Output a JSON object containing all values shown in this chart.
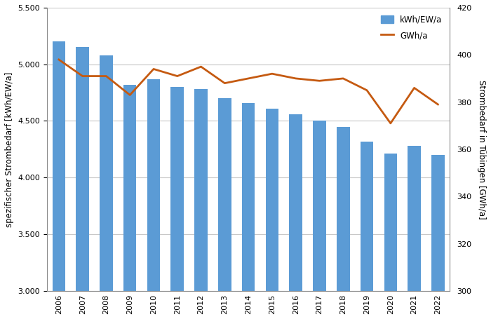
{
  "years": [
    2006,
    2007,
    2008,
    2009,
    2010,
    2011,
    2012,
    2013,
    2014,
    2015,
    2016,
    2017,
    2018,
    2019,
    2020,
    2021,
    2022
  ],
  "kwh_ew_a": [
    5200,
    5150,
    5080,
    4820,
    4870,
    4800,
    4780,
    4700,
    4660,
    4610,
    4560,
    4500,
    4450,
    4320,
    4210,
    4280,
    4200
  ],
  "gwh_a": [
    398,
    391,
    391,
    383,
    394,
    391,
    395,
    388,
    390,
    392,
    390,
    389,
    390,
    385,
    371,
    386,
    379
  ],
  "bar_color": "#5B9BD5",
  "line_color": "#C55A11",
  "ylabel_left": "spezifischer Strombedarf [kWh/EW/a]",
  "ylabel_right": "Strombedarf in Tübingen [GWh/a]",
  "ylim_left": [
    3000,
    5500
  ],
  "ylim_right": [
    300,
    420
  ],
  "yticks_left": [
    3000,
    3500,
    4000,
    4500,
    5000,
    5500
  ],
  "yticks_right": [
    300,
    320,
    340,
    360,
    380,
    400,
    420
  ],
  "legend_labels": [
    "kWh/EW/a",
    "GWh/a"
  ],
  "background_color": "#ffffff",
  "grid_color": "#c8c8c8",
  "bar_width": 0.55,
  "figsize": [
    7.0,
    4.55
  ],
  "dpi": 100
}
